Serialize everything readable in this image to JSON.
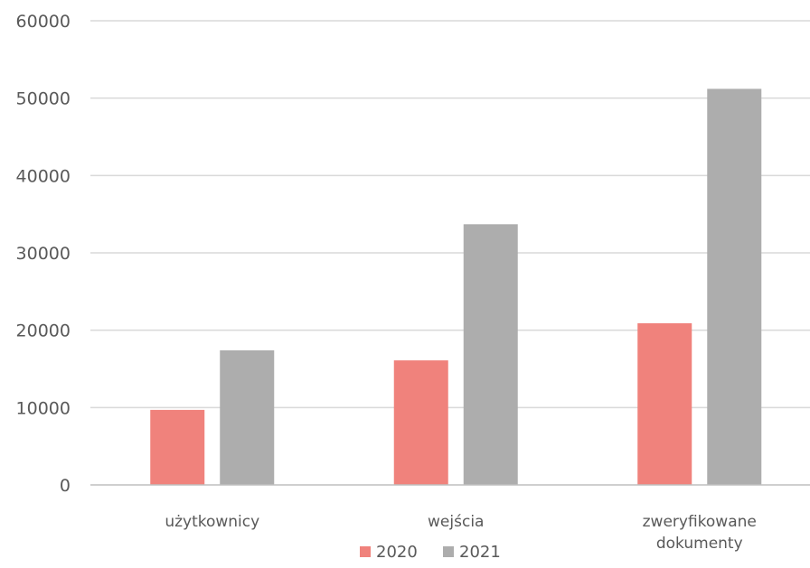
{
  "chart_data": {
    "type": "bar",
    "title": "",
    "xlabel": "",
    "ylabel": "",
    "categories": [
      [
        "użytkownicy"
      ],
      [
        "wejścia"
      ],
      [
        "zweryfikowane",
        "dokumenty"
      ]
    ],
    "series": [
      {
        "name": "2020",
        "color": "#f0827c",
        "values": [
          9700,
          16100,
          20900
        ]
      },
      {
        "name": "2021",
        "color": "#adadad",
        "values": [
          17400,
          33700,
          51200
        ]
      }
    ],
    "ylim": [
      0,
      60000
    ],
    "yticks": [
      "0",
      "10000",
      "20000",
      "30000",
      "40000",
      "50000",
      "60000"
    ],
    "grid": true,
    "legend": "bottom"
  }
}
